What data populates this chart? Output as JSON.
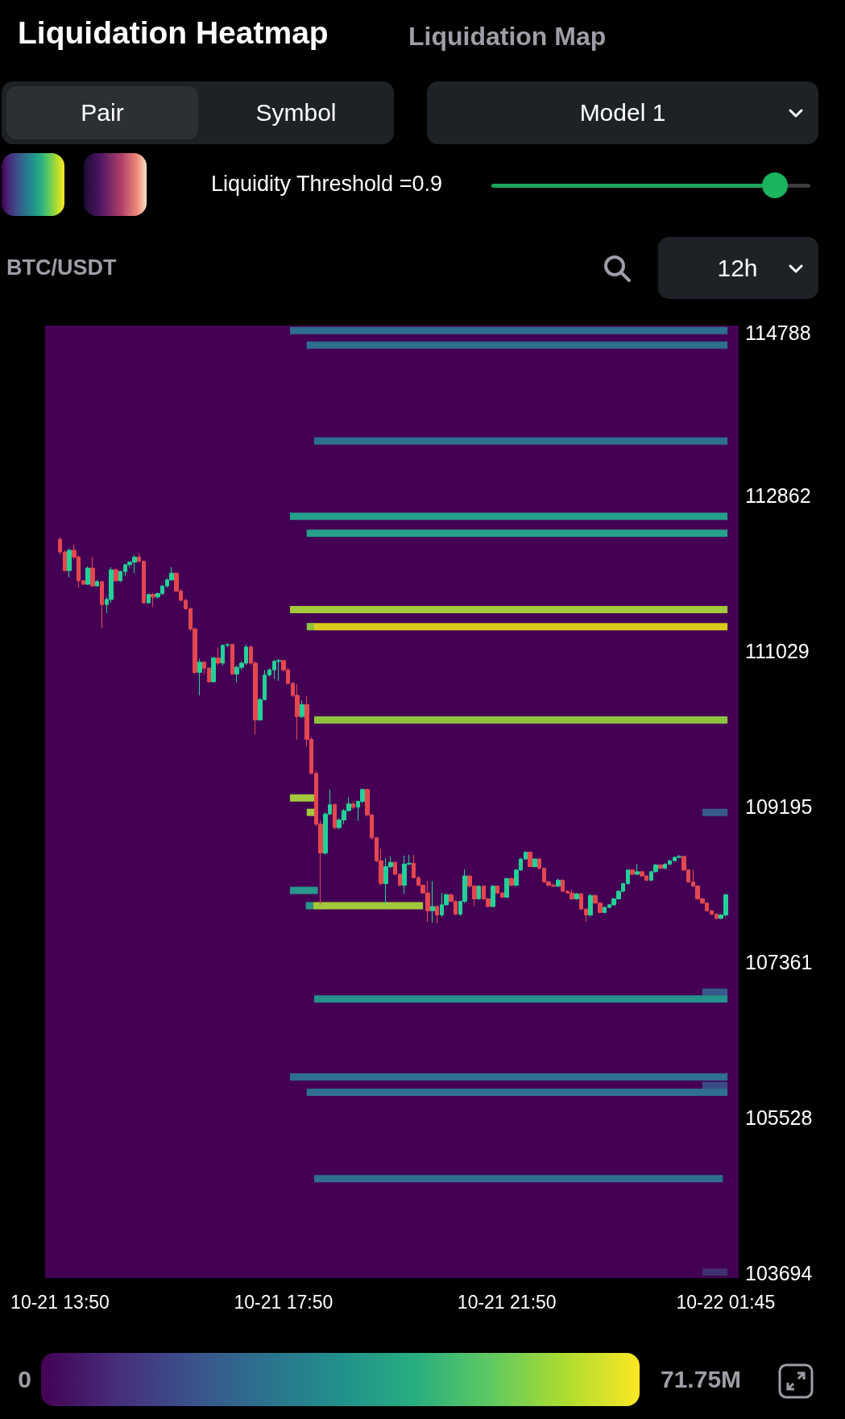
{
  "chart_data": {
    "type": "candlestick",
    "title": "Liquidation Heatmap",
    "subtitle": "BTC/USDT",
    "annotations": [
      "Liquidation Map",
      "Pair",
      "Symbol",
      "Model 1",
      "Liquidity Threshold =0.9",
      "12h"
    ],
    "x": [
      "--10-21T13:50",
      "--10-21T13:55",
      "--10-21T14:00",
      "--10-21T14:05",
      "--10-21T14:10",
      "--10-21T14:15",
      "--10-21T14:20",
      "--10-21T14:25",
      "--10-21T14:30",
      "--10-21T14:35",
      "--10-21T14:40",
      "--10-21T14:45",
      "--10-21T14:50",
      "--10-21T14:55",
      "--10-21T15:00",
      "--10-21T15:05",
      "--10-21T15:10",
      "--10-21T15:15",
      "--10-21T15:20",
      "--10-21T15:25",
      "--10-21T15:30",
      "--10-21T15:35",
      "--10-21T15:40",
      "--10-21T15:45",
      "--10-21T15:50",
      "--10-21T15:55",
      "--10-21T16:00",
      "--10-21T16:05",
      "--10-21T16:10",
      "--10-21T16:15",
      "--10-21T16:20",
      "--10-21T16:25",
      "--10-21T16:30",
      "--10-21T16:35",
      "--10-21T16:40",
      "--10-21T16:45",
      "--10-21T16:50",
      "--10-21T16:55",
      "--10-21T17:00",
      "--10-21T17:05",
      "--10-21T17:10",
      "--10-21T17:15",
      "--10-21T17:20",
      "--10-21T17:25",
      "--10-21T17:30",
      "--10-21T17:35",
      "--10-21T17:40",
      "--10-21T17:45",
      "--10-21T17:50",
      "--10-21T17:55",
      "--10-21T18:00",
      "--10-21T18:05",
      "--10-21T18:10",
      "--10-21T18:15",
      "--10-21T18:20",
      "--10-21T18:25",
      "--10-21T18:30",
      "--10-21T18:35",
      "--10-21T18:40",
      "--10-21T18:45",
      "--10-21T18:50",
      "--10-21T18:55",
      "--10-21T19:00",
      "--10-21T19:05",
      "--10-21T19:10",
      "--10-21T19:15",
      "--10-21T19:20",
      "--10-21T19:25",
      "--10-21T19:30",
      "--10-21T19:35",
      "--10-21T19:40",
      "--10-21T19:45",
      "--10-21T19:50",
      "--10-21T19:55",
      "--10-21T20:00",
      "--10-21T20:05",
      "--10-21T20:10",
      "--10-21T20:15",
      "--10-21T20:20",
      "--10-21T20:25",
      "--10-21T20:30",
      "--10-21T20:35",
      "--10-21T20:40",
      "--10-21T20:45",
      "--10-21T20:50",
      "--10-21T20:55",
      "--10-21T21:00",
      "--10-21T21:05",
      "--10-21T21:10",
      "--10-21T21:15",
      "--10-21T21:20",
      "--10-21T21:25",
      "--10-21T21:30",
      "--10-21T21:35",
      "--10-21T21:40",
      "--10-21T21:45",
      "--10-21T21:50",
      "--10-21T21:55",
      "--10-21T22:00",
      "--10-21T22:05",
      "--10-21T22:10",
      "--10-21T22:15",
      "--10-21T22:20",
      "--10-21T22:25",
      "--10-21T22:30",
      "--10-21T22:35",
      "--10-21T22:40",
      "--10-21T22:45",
      "--10-21T22:50",
      "--10-21T22:55",
      "--10-21T23:00",
      "--10-21T23:05",
      "--10-21T23:10",
      "--10-21T23:15",
      "--10-21T23:20",
      "--10-21T23:25",
      "--10-21T23:30",
      "--10-21T23:35",
      "--10-21T23:40",
      "--10-21T23:45",
      "--10-21T23:50",
      "--10-21T23:55",
      "--10-22T00:00",
      "--10-22T00:05",
      "--10-22T00:10",
      "--10-22T00:15",
      "--10-22T00:20",
      "--10-22T00:25",
      "--10-22T00:30",
      "--10-22T00:35",
      "--10-22T00:40",
      "--10-22T00:45",
      "--10-22T00:50",
      "--10-22T00:55",
      "--10-22T01:00",
      "--10-22T01:05",
      "--10-22T01:10",
      "--10-22T01:15",
      "--10-22T01:20",
      "--10-22T01:25",
      "--10-22T01:30",
      "--10-22T01:35",
      "--10-22T01:40",
      "--10-22T01:45"
    ],
    "ohlc": [
      [
        112350,
        112370,
        112170,
        112200
      ],
      [
        112200,
        112220,
        111970,
        111980
      ],
      [
        111980,
        112240,
        111900,
        112220
      ],
      [
        112220,
        112290,
        112120,
        112140
      ],
      [
        112140,
        112160,
        111780,
        111860
      ],
      [
        111860,
        111870,
        111810,
        111820
      ],
      [
        111820,
        112030,
        111810,
        112010
      ],
      [
        112010,
        112140,
        111790,
        111800
      ],
      [
        111800,
        111870,
        111790,
        111850
      ],
      [
        111850,
        111860,
        111300,
        111580
      ],
      [
        111580,
        111670,
        111480,
        111640
      ],
      [
        111640,
        112020,
        111600,
        111990
      ],
      [
        111990,
        112010,
        111850,
        111860
      ],
      [
        111860,
        111980,
        111850,
        111970
      ],
      [
        111970,
        112060,
        111920,
        112050
      ],
      [
        112050,
        112090,
        112020,
        112080
      ],
      [
        112080,
        112160,
        111950,
        112140
      ],
      [
        112140,
        112190,
        112080,
        112090
      ],
      [
        112090,
        112100,
        111590,
        111600
      ],
      [
        111600,
        111710,
        111590,
        111700
      ],
      [
        111700,
        111710,
        111550,
        111670
      ],
      [
        111670,
        111720,
        111650,
        111710
      ],
      [
        111710,
        111810,
        111690,
        111800
      ],
      [
        111800,
        111890,
        111780,
        111870
      ],
      [
        111870,
        112020,
        111860,
        111950
      ],
      [
        111950,
        111960,
        111730,
        111740
      ],
      [
        111740,
        111760,
        111620,
        111630
      ],
      [
        111630,
        111650,
        111520,
        111530
      ],
      [
        111530,
        111550,
        111270,
        111290
      ],
      [
        111290,
        111310,
        110760,
        110780
      ],
      [
        110780,
        110940,
        110510,
        110900
      ],
      [
        110900,
        110910,
        110760,
        110830
      ],
      [
        110830,
        110840,
        110660,
        110670
      ],
      [
        110670,
        110960,
        110660,
        110950
      ],
      [
        110950,
        111070,
        110870,
        110890
      ],
      [
        110890,
        111110,
        110860,
        111100
      ],
      [
        111100,
        111120,
        111080,
        111110
      ],
      [
        111110,
        111120,
        110750,
        110760
      ],
      [
        110760,
        110860,
        110660,
        110840
      ],
      [
        110840,
        110910,
        110810,
        110890
      ],
      [
        110890,
        111110,
        110870,
        111080
      ],
      [
        111080,
        111100,
        110870,
        110890
      ],
      [
        110890,
        110910,
        110050,
        110220
      ],
      [
        110220,
        110480,
        110210,
        110460
      ],
      [
        110460,
        110810,
        110450,
        110750
      ],
      [
        110750,
        110830,
        110730,
        110810
      ],
      [
        110810,
        110930,
        110700,
        110910
      ],
      [
        110910,
        110940,
        110680,
        110920
      ],
      [
        110920,
        110930,
        110790,
        110810
      ],
      [
        110810,
        110830,
        110640,
        110650
      ],
      [
        110650,
        110670,
        110490,
        110510
      ],
      [
        110510,
        110640,
        109990,
        110260
      ],
      [
        110260,
        110450,
        110240,
        110400
      ],
      [
        110400,
        110500,
        109910,
        109990
      ],
      [
        109990,
        110020,
        109580,
        109590
      ],
      [
        109590,
        109620,
        108970,
        108990
      ],
      [
        108990,
        109040,
        108040,
        108650
      ],
      [
        108650,
        109130,
        108630,
        109110
      ],
      [
        109110,
        109400,
        109100,
        109220
      ],
      [
        109220,
        109240,
        108930,
        108950
      ],
      [
        108950,
        109060,
        108930,
        109040
      ],
      [
        109040,
        109170,
        108990,
        109150
      ],
      [
        109150,
        109310,
        109140,
        109230
      ],
      [
        109230,
        109260,
        109170,
        109190
      ],
      [
        109190,
        109270,
        109030,
        109260
      ],
      [
        109260,
        109410,
        109240,
        109400
      ],
      [
        109400,
        109410,
        109080,
        109100
      ],
      [
        109100,
        109110,
        108810,
        108830
      ],
      [
        108830,
        108840,
        108540,
        108560
      ],
      [
        108560,
        108700,
        108270,
        108290
      ],
      [
        108290,
        108590,
        108040,
        108490
      ],
      [
        108490,
        108610,
        108470,
        108540
      ],
      [
        108540,
        108550,
        108390,
        108400
      ],
      [
        108400,
        108410,
        108260,
        108270
      ],
      [
        108270,
        108620,
        108170,
        108520
      ],
      [
        108520,
        108630,
        108510,
        108530
      ],
      [
        108530,
        108630,
        108350,
        108360
      ],
      [
        108360,
        108380,
        108260,
        108270
      ],
      [
        108270,
        108280,
        108170,
        108180
      ],
      [
        108180,
        108320,
        107840,
        107970
      ],
      [
        107970,
        108320,
        107830,
        108020
      ],
      [
        108020,
        108040,
        107820,
        107920
      ],
      [
        107920,
        108180,
        107900,
        108040
      ],
      [
        108040,
        108170,
        108030,
        108160
      ],
      [
        108160,
        108170,
        108070,
        108080
      ],
      [
        108080,
        108090,
        107920,
        107930
      ],
      [
        107930,
        108090,
        107910,
        108080
      ],
      [
        108080,
        108460,
        108060,
        108380
      ],
      [
        108380,
        108390,
        108240,
        108260
      ],
      [
        108260,
        108270,
        108020,
        108110
      ],
      [
        108110,
        108270,
        108100,
        108260
      ],
      [
        108260,
        108270,
        108100,
        108110
      ],
      [
        108110,
        108120,
        108010,
        108020
      ],
      [
        108020,
        108270,
        108010,
        108260
      ],
      [
        108260,
        108270,
        108170,
        108180
      ],
      [
        108180,
        108190,
        108120,
        108130
      ],
      [
        108130,
        108360,
        108120,
        108350
      ],
      [
        108350,
        108360,
        108260,
        108270
      ],
      [
        108270,
        108460,
        108260,
        108450
      ],
      [
        108450,
        108590,
        108440,
        108580
      ],
      [
        108580,
        108670,
        108570,
        108660
      ],
      [
        108660,
        108670,
        108480,
        108490
      ],
      [
        108490,
        108590,
        108480,
        108580
      ],
      [
        108580,
        108590,
        108460,
        108470
      ],
      [
        108470,
        108480,
        108300,
        108310
      ],
      [
        108310,
        108320,
        108260,
        108270
      ],
      [
        108270,
        108290,
        108250,
        108260
      ],
      [
        108260,
        108350,
        108250,
        108330
      ],
      [
        108330,
        108340,
        108190,
        108200
      ],
      [
        108200,
        108210,
        108170,
        108180
      ],
      [
        108180,
        108220,
        108100,
        108110
      ],
      [
        108110,
        108180,
        108100,
        108170
      ],
      [
        108170,
        108180,
        107980,
        107990
      ],
      [
        107990,
        108000,
        107840,
        107920
      ],
      [
        107920,
        108170,
        107900,
        108150
      ],
      [
        108150,
        108160,
        108050,
        108060
      ],
      [
        108060,
        108070,
        107940,
        107950
      ],
      [
        107950,
        108020,
        107940,
        108010
      ],
      [
        108010,
        108050,
        108000,
        108040
      ],
      [
        108040,
        108120,
        108030,
        108110
      ],
      [
        108110,
        108210,
        108100,
        108200
      ],
      [
        108200,
        108300,
        108190,
        108290
      ],
      [
        108290,
        108460,
        108280,
        108450
      ],
      [
        108450,
        108460,
        108390,
        108400
      ],
      [
        108400,
        108520,
        108390,
        108430
      ],
      [
        108430,
        108440,
        108370,
        108380
      ],
      [
        108380,
        108390,
        108320,
        108330
      ],
      [
        108330,
        108440,
        108320,
        108430
      ],
      [
        108430,
        108520,
        108420,
        108510
      ],
      [
        108510,
        108520,
        108460,
        108470
      ],
      [
        108470,
        108530,
        108460,
        108520
      ],
      [
        108520,
        108570,
        108510,
        108560
      ],
      [
        108560,
        108610,
        108550,
        108600
      ],
      [
        108600,
        108630,
        108590,
        108610
      ],
      [
        108610,
        108620,
        108440,
        108450
      ],
      [
        108450,
        108460,
        108300,
        108310
      ],
      [
        108310,
        108450,
        108250,
        108260
      ],
      [
        108260,
        108270,
        108100,
        108110
      ],
      [
        108110,
        108120,
        108050,
        108060
      ],
      [
        108060,
        108070,
        107960,
        107970
      ],
      [
        107970,
        107980,
        107920,
        107930
      ],
      [
        107930,
        107940,
        107870,
        107880
      ],
      [
        107880,
        107930,
        107870,
        107920
      ],
      [
        107920,
        108170,
        107900,
        108160
      ]
    ],
    "series": [
      {
        "type": "line",
        "x": [
          "--10-21T17:57",
          "--10-22T01:47"
        ],
        "values": [
          114810,
          114810
        ],
        "color": "#2e6e8e"
      },
      {
        "type": "line",
        "x": [
          "--10-21T18:15",
          "--10-22T01:47"
        ],
        "values": [
          114640,
          114640
        ],
        "color": "#2e6e8e"
      },
      {
        "type": "line",
        "x": [
          "--10-21T18:23",
          "--10-22T01:47"
        ],
        "values": [
          113510,
          113510
        ],
        "color": "#2d6f8e"
      },
      {
        "type": "line",
        "x": [
          "--10-21T17:57",
          "--10-22T01:47"
        ],
        "values": [
          112620,
          112620
        ],
        "color": "#25a08a"
      },
      {
        "type": "line",
        "x": [
          "--10-21T18:15",
          "--10-22T01:47"
        ],
        "values": [
          112420,
          112420
        ],
        "color": "#25a08a"
      },
      {
        "type": "line",
        "x": [
          "--10-21T17:57",
          "--10-22T01:47"
        ],
        "values": [
          111520,
          111520
        ],
        "color": "#a4c83b"
      },
      {
        "type": "line",
        "x": [
          "--10-21T18:15",
          "--10-21T18:23"
        ],
        "values": [
          111320,
          111320
        ],
        "color": "#8fc140"
      },
      {
        "type": "line",
        "x": [
          "--10-21T18:23",
          "--10-22T01:47"
        ],
        "values": [
          111320,
          111320
        ],
        "color": "#dccc1d"
      },
      {
        "type": "line",
        "x": [
          "--10-21T18:23",
          "--10-22T01:47"
        ],
        "values": [
          110220,
          110220
        ],
        "color": "#8fc140"
      },
      {
        "type": "line",
        "x": [
          "--10-21T17:57",
          "--10-21T18:25"
        ],
        "values": [
          109300,
          109300
        ],
        "color": "#a4c83b"
      },
      {
        "type": "line",
        "x": [
          "--10-21T18:15",
          "--10-21T18:25"
        ],
        "values": [
          109130,
          109130
        ],
        "color": "#a4c83b"
      },
      {
        "type": "line",
        "x": [
          "--10-22T01:20",
          "--10-22T01:47"
        ],
        "values": [
          109130,
          109130
        ],
        "color": "#375b8c"
      },
      {
        "type": "line",
        "x": [
          "--10-21T17:57",
          "--10-21T18:27"
        ],
        "values": [
          108210,
          108210
        ],
        "color": "#27968b"
      },
      {
        "type": "line",
        "x": [
          "--10-21T18:14",
          "--10-21T18:22"
        ],
        "values": [
          108030,
          108030
        ],
        "color": "#27968b"
      },
      {
        "type": "line",
        "x": [
          "--10-21T18:22",
          "--10-21T20:20"
        ],
        "values": [
          108030,
          108030
        ],
        "color": "#a4c83b"
      },
      {
        "type": "line",
        "x": [
          "--10-22T01:20",
          "--10-22T01:47"
        ],
        "values": [
          107010,
          107010
        ],
        "color": "#375b8c"
      },
      {
        "type": "line",
        "x": [
          "--10-21T18:23",
          "--10-22T01:47"
        ],
        "values": [
          106930,
          106930
        ],
        "color": "#24918c"
      },
      {
        "type": "line",
        "x": [
          "--10-21T17:57",
          "--10-22T01:47"
        ],
        "values": [
          106010,
          106010
        ],
        "color": "#2e6e8e"
      },
      {
        "type": "line",
        "x": [
          "--10-22T01:20",
          "--10-22T01:47"
        ],
        "values": [
          105910,
          105910
        ],
        "color": "#3a4b84"
      },
      {
        "type": "line",
        "x": [
          "--10-21T18:15",
          "--10-22T01:47"
        ],
        "values": [
          105830,
          105830
        ],
        "color": "#2e6e8e"
      },
      {
        "type": "line",
        "x": [
          "--10-21T18:23",
          "--10-22T01:42"
        ],
        "values": [
          104810,
          104810
        ],
        "color": "#2e708e"
      },
      {
        "type": "line",
        "x": [
          "--10-22T01:20",
          "--10-22T01:47"
        ],
        "values": [
          103710,
          103710
        ],
        "color": "#40306e"
      }
    ],
    "xlim": [
      "--10-21T13:34",
      "--10-22T01:59"
    ],
    "xticks": [
      {
        "value": "--10-21T13:50",
        "label": "10-21 13:50"
      },
      {
        "value": "--10-21T17:50",
        "label": "10-21 17:50"
      },
      {
        "value": "--10-21T21:50",
        "label": "10-21 21:50"
      },
      {
        "value": "--10-22T01:45",
        "label": "10-22 01:45"
      }
    ],
    "ylim": [
      103640,
      114870
    ],
    "yticks": [
      103694,
      105528,
      107361,
      109195,
      111029,
      112862,
      114788
    ],
    "clim": [
      0,
      71.75
    ],
    "cticks": [
      0,
      {
        "value": 71.75,
        "label": "71.75M"
      }
    ]
  }
}
